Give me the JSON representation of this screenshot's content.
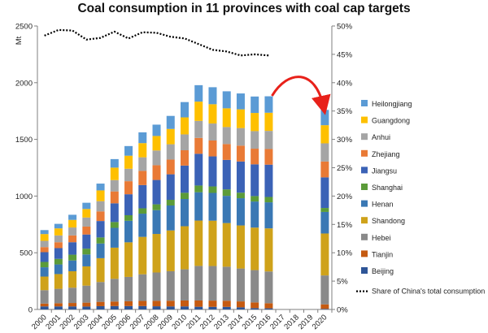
{
  "chart_data": {
    "type": "bar",
    "stacked": true,
    "title": "Coal consumption in 11 provinces with coal cap targets",
    "ylabel": "Mt",
    "ylim": [
      0,
      2500
    ],
    "y_ticks": [
      "0",
      "500",
      "1000",
      "1500",
      "2000",
      "2500"
    ],
    "y2lim": [
      0,
      50
    ],
    "y2_ticks": [
      "0%",
      "5%",
      "10%",
      "15%",
      "20%",
      "25%",
      "30%",
      "35%",
      "40%",
      "45%",
      "50%"
    ],
    "categories": [
      "2000",
      "2001",
      "2002",
      "2003",
      "2004",
      "2005",
      "2006",
      "2007",
      "2008",
      "2009",
      "2010",
      "2011",
      "2012",
      "2013",
      "2014",
      "2015",
      "2016",
      "2017",
      "2018",
      "2019",
      "2020"
    ],
    "legend_position": "right",
    "grid": false,
    "series": [
      {
        "name": "Beijing",
        "color": "#2e5597",
        "values": [
          27,
          27,
          27,
          26,
          29,
          30,
          30,
          30,
          28,
          27,
          27,
          24,
          23,
          23,
          19,
          12,
          10,
          null,
          null,
          null,
          5
        ]
      },
      {
        "name": "Tianjin",
        "color": "#c55a11",
        "values": [
          25,
          28,
          30,
          34,
          38,
          40,
          42,
          45,
          48,
          50,
          52,
          55,
          55,
          54,
          52,
          50,
          45,
          null,
          null,
          null,
          40
        ]
      },
      {
        "name": "Hebei",
        "color": "#8a8a8a",
        "values": [
          118,
          127,
          135,
          150,
          175,
          200,
          215,
          235,
          250,
          260,
          275,
          305,
          305,
          300,
          290,
          285,
          280,
          null,
          null,
          null,
          255
        ]
      },
      {
        "name": "Shandong",
        "color": "#cfa21a",
        "values": [
          120,
          130,
          145,
          170,
          210,
          275,
          305,
          330,
          340,
          360,
          380,
          400,
          400,
          385,
          380,
          375,
          380,
          null,
          null,
          null,
          370
        ]
      },
      {
        "name": "Henan",
        "color": "#3a78b4",
        "values": [
          82,
          85,
          95,
          105,
          130,
          175,
          190,
          205,
          210,
          220,
          240,
          250,
          245,
          240,
          240,
          230,
          230,
          null,
          null,
          null,
          190
        ]
      },
      {
        "name": "Shanghai",
        "color": "#5b9b39",
        "values": [
          47,
          49,
          51,
          51,
          53,
          51,
          49,
          47,
          51,
          50,
          55,
          59,
          57,
          57,
          49,
          48,
          47,
          null,
          null,
          null,
          35
        ]
      },
      {
        "name": "Jiangsu",
        "color": "#3b62b6",
        "values": [
          86,
          95,
          110,
          125,
          145,
          165,
          185,
          205,
          215,
          225,
          240,
          280,
          265,
          260,
          275,
          280,
          285,
          null,
          null,
          null,
          270
        ]
      },
      {
        "name": "Zhejiang",
        "color": "#e97a36",
        "values": [
          45,
          52,
          60,
          70,
          85,
          105,
          115,
          125,
          130,
          130,
          135,
          140,
          140,
          140,
          140,
          138,
          138,
          null,
          null,
          null,
          140
        ]
      },
      {
        "name": "Anhui",
        "color": "#a5a5a5",
        "values": [
          55,
          60,
          70,
          80,
          90,
          100,
          110,
          120,
          130,
          135,
          140,
          150,
          150,
          150,
          155,
          155,
          160,
          null,
          null,
          null,
          160
        ]
      },
      {
        "name": "Guangdong",
        "color": "#fec000",
        "values": [
          60,
          62,
          67,
          75,
          95,
          110,
          115,
          125,
          128,
          135,
          150,
          170,
          170,
          165,
          165,
          160,
          160,
          null,
          null,
          null,
          160
        ]
      },
      {
        "name": "Heilongjiang",
        "color": "#5b9bd5",
        "values": [
          35,
          40,
          45,
          55,
          60,
          75,
          85,
          95,
          100,
          115,
          135,
          145,
          150,
          150,
          140,
          145,
          145,
          null,
          null,
          null,
          135
        ]
      }
    ],
    "line_series": {
      "name": "Share of China's total consumption",
      "axis": "right",
      "style": "dotted",
      "color": "#000000",
      "values": [
        48.3,
        49.3,
        49.2,
        47.6,
        47.9,
        49.0,
        47.8,
        48.9,
        48.8,
        48.1,
        47.8,
        46.8,
        45.8,
        45.5,
        44.8,
        45.0,
        44.8,
        null,
        null,
        null,
        null
      ]
    },
    "annotation": {
      "type": "curved-arrow",
      "color": "#e8211a",
      "from_category": "2016",
      "to_category": "2020"
    }
  }
}
